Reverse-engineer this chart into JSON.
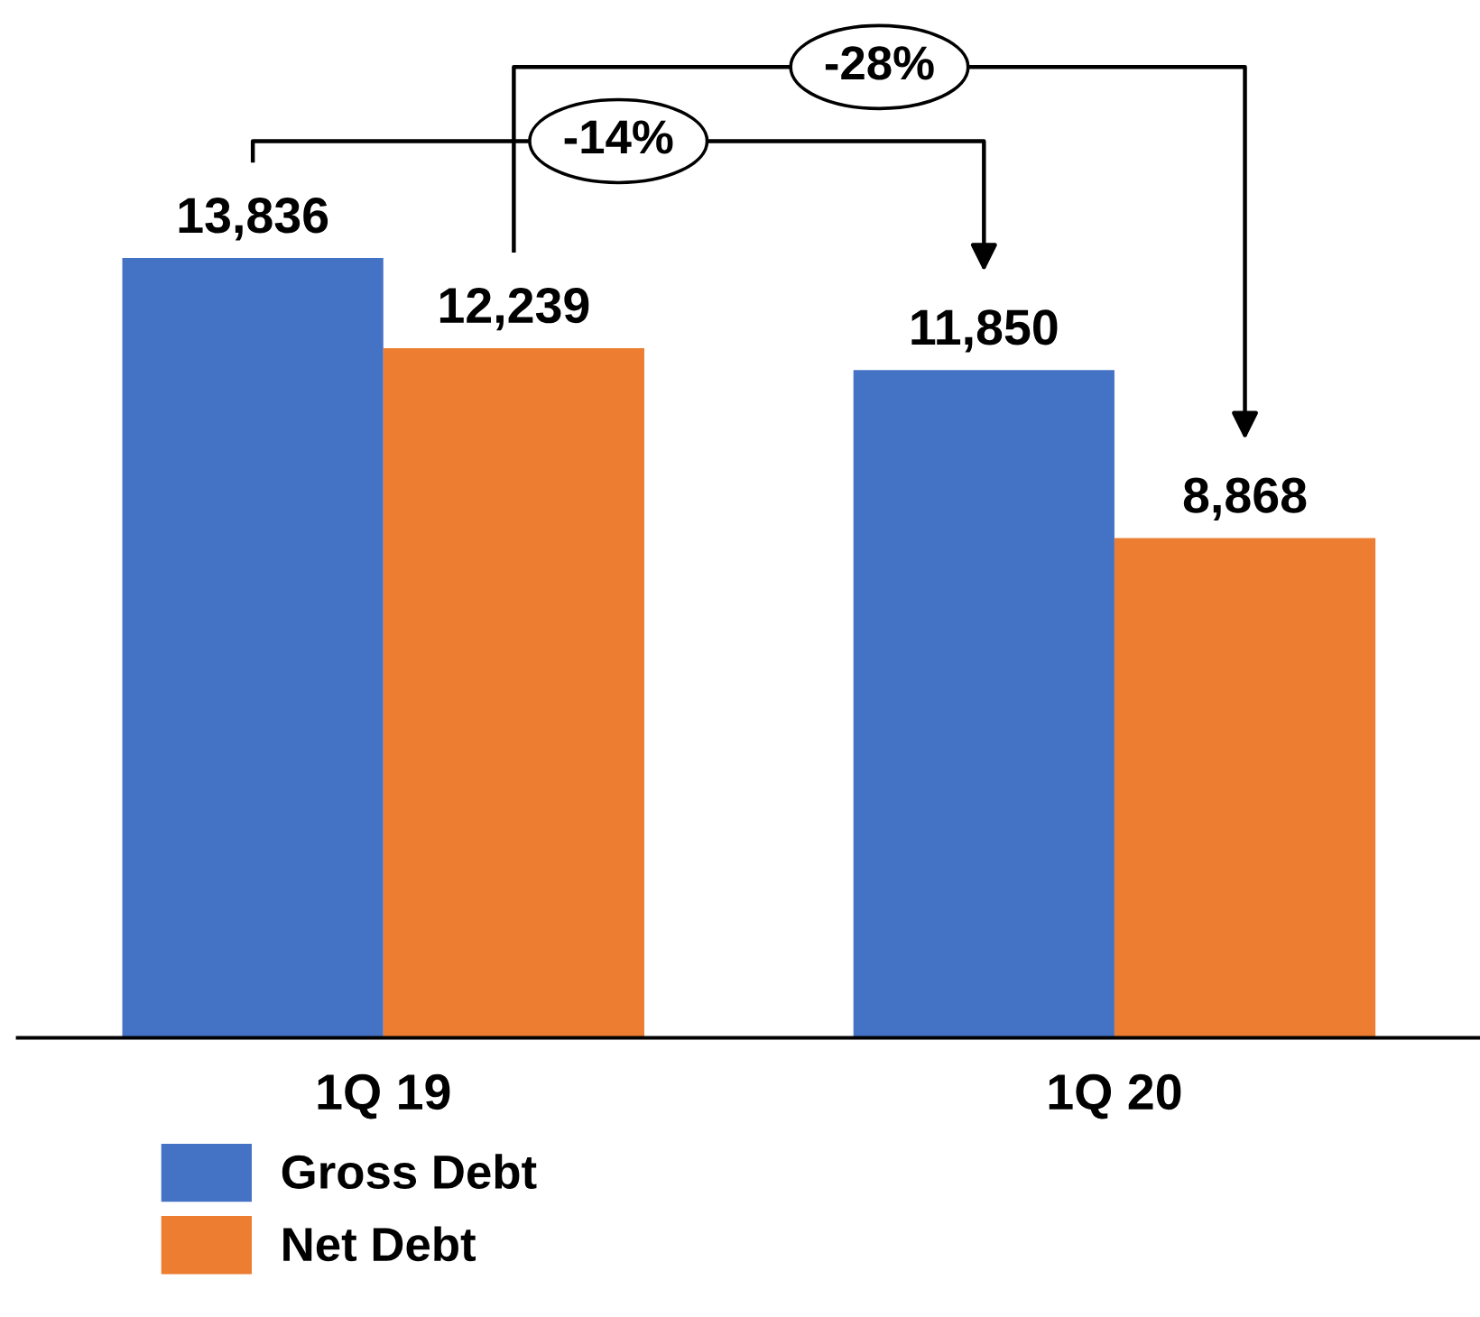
{
  "chart_data": {
    "type": "bar",
    "categories": [
      "1Q 19",
      "1Q 20"
    ],
    "series": [
      {
        "name": "Gross Debt",
        "color": "#4472c4",
        "values": [
          13836,
          11850
        ],
        "value_labels": [
          "13,836",
          "11,850"
        ]
      },
      {
        "name": "Net Debt",
        "color": "#ed7d31",
        "values": [
          12239,
          8868
        ],
        "value_labels": [
          "12,239",
          "8,868"
        ]
      }
    ],
    "annotations": [
      "-14%",
      "-28%"
    ],
    "legend": "bottom left",
    "grid": false
  }
}
